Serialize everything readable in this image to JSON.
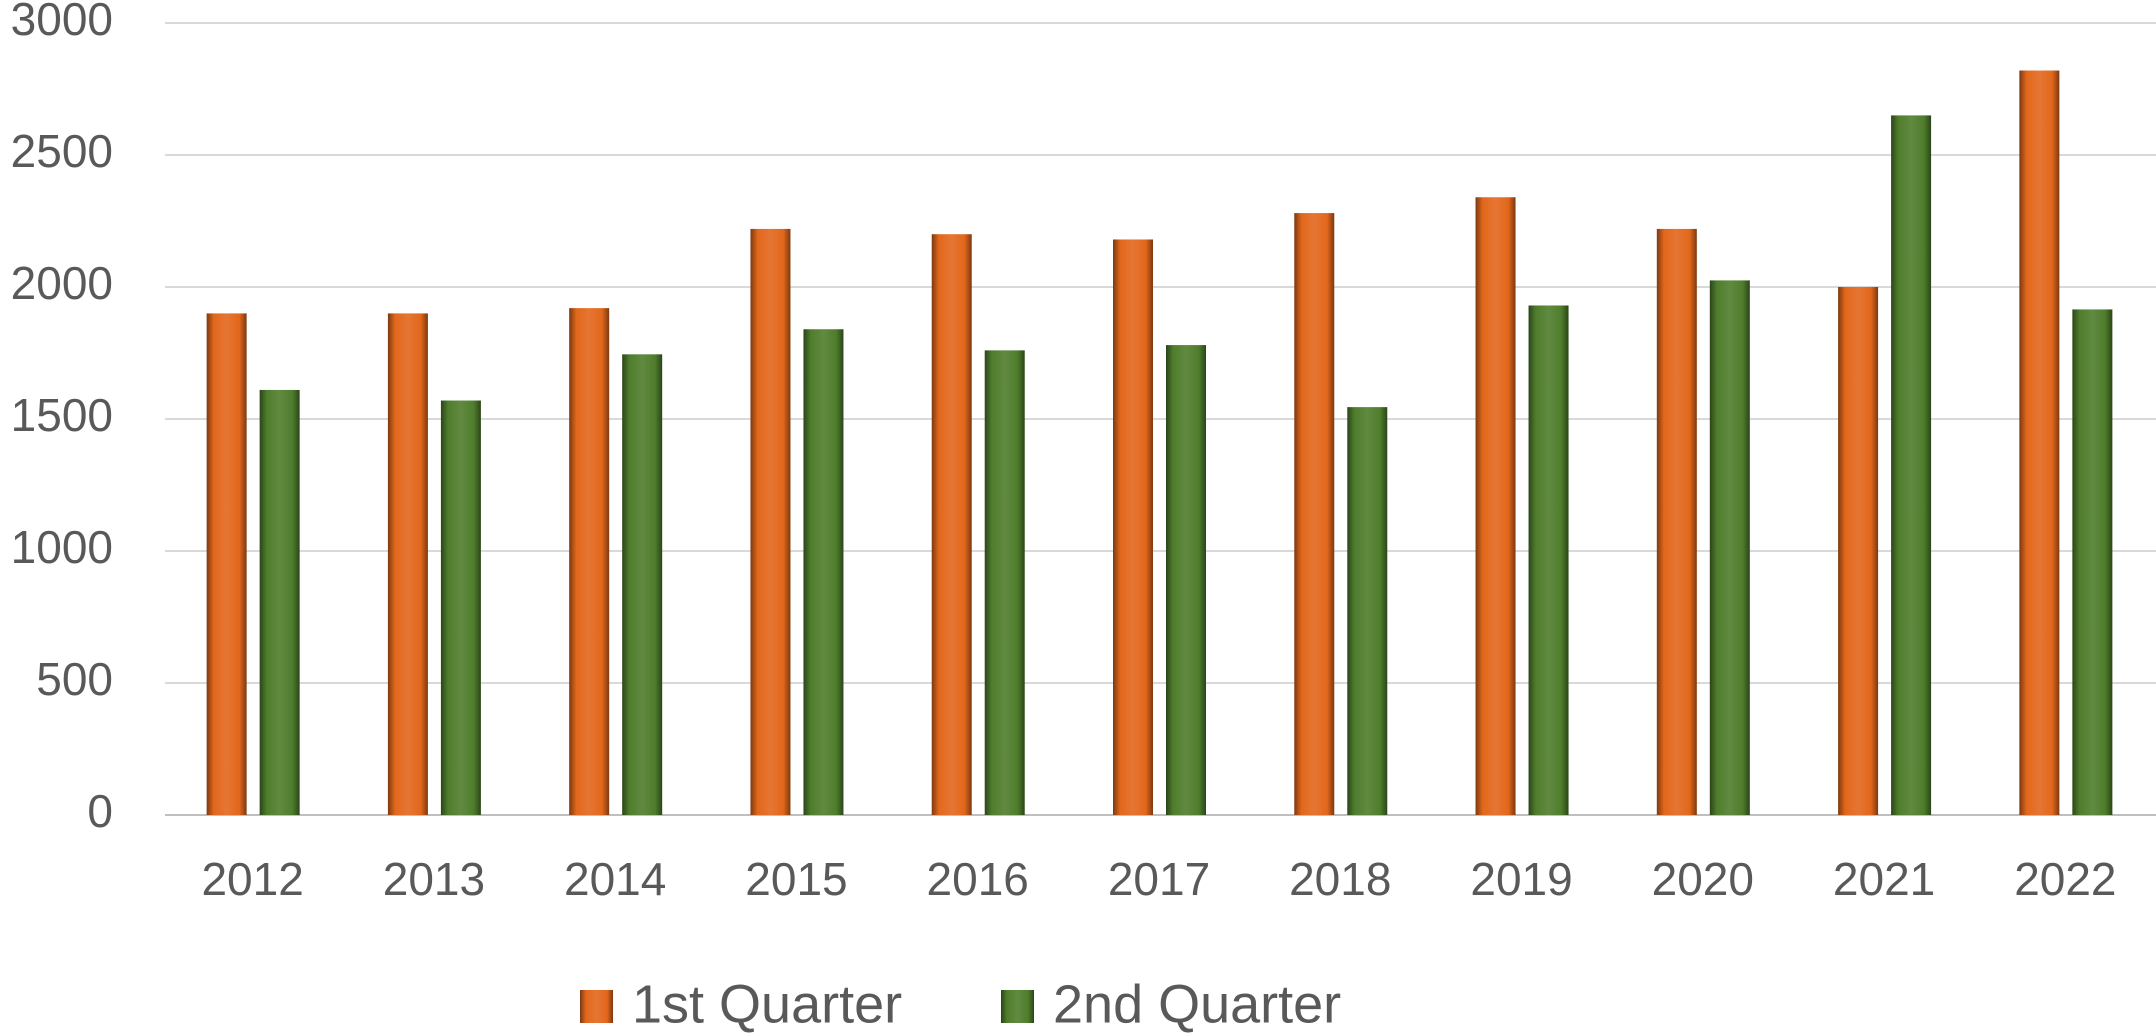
{
  "chart_data": {
    "type": "bar",
    "categories": [
      "2012",
      "2013",
      "2014",
      "2015",
      "2016",
      "2017",
      "2018",
      "2019",
      "2020",
      "2021",
      "2022"
    ],
    "series": [
      {
        "name": "1st Quarter",
        "color": "#e2671c",
        "values": [
          1900,
          1900,
          1920,
          2220,
          2200,
          2180,
          2280,
          2340,
          2220,
          2000,
          2820
        ]
      },
      {
        "name": "2nd Quarter",
        "color": "#4f7d2c",
        "values": [
          1610,
          1570,
          1745,
          1840,
          1760,
          1780,
          1545,
          1930,
          2025,
          2650,
          1915
        ]
      }
    ],
    "ylim": [
      0,
      3000
    ],
    "yticks": [
      0,
      500,
      1000,
      1500,
      2000,
      2500,
      3000
    ],
    "grid": true,
    "legend": "bottom"
  }
}
